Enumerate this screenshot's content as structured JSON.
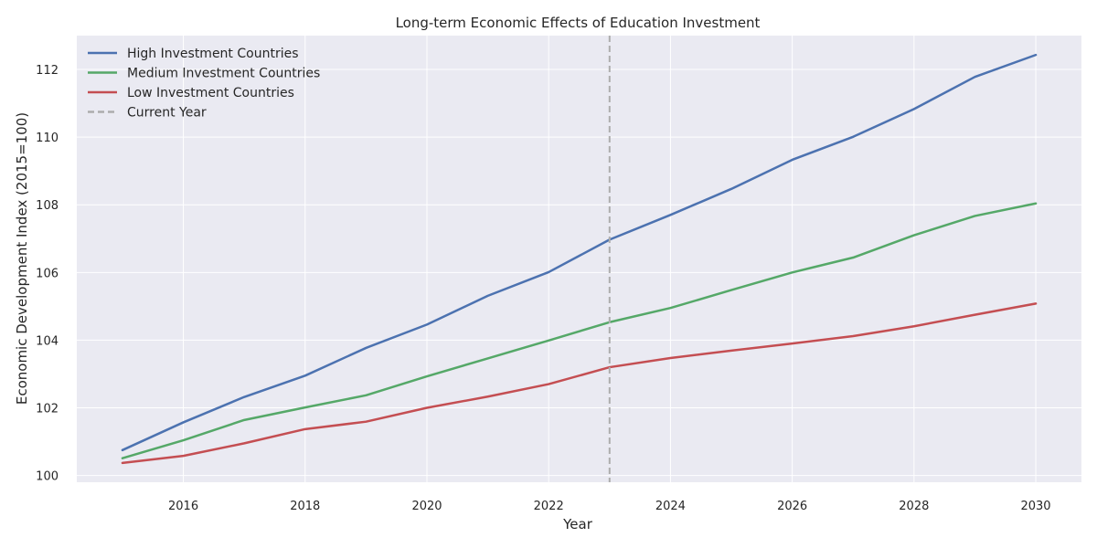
{
  "chart_data": {
    "type": "line",
    "title": "Long-term Economic Effects of Education Investment",
    "xlabel": "Year",
    "ylabel": "Economic Development Index (2015=100)",
    "xlim": [
      2014.25,
      2030.75
    ],
    "ylim": [
      99.8,
      113.0
    ],
    "x_ticks": [
      2016,
      2018,
      2020,
      2022,
      2024,
      2026,
      2028,
      2030
    ],
    "y_ticks": [
      100,
      102,
      104,
      106,
      108,
      110,
      112
    ],
    "grid": true,
    "legend_position": "top-left",
    "x": [
      2015,
      2016,
      2017,
      2018,
      2019,
      2020,
      2021,
      2022,
      2023,
      2024,
      2025,
      2026,
      2027,
      2028,
      2029,
      2030
    ],
    "series": [
      {
        "name": "High Investment Countries",
        "color": "#4c72b0",
        "values": [
          100.75,
          101.57,
          102.32,
          102.95,
          103.77,
          104.46,
          105.31,
          106.01,
          106.97,
          107.7,
          108.47,
          109.33,
          110.01,
          110.83,
          111.78,
          112.43
        ]
      },
      {
        "name": "Medium Investment Countries",
        "color": "#55a868",
        "values": [
          100.51,
          101.04,
          101.64,
          102.01,
          102.37,
          102.93,
          103.46,
          103.99,
          104.53,
          104.95,
          105.48,
          106.0,
          106.44,
          107.1,
          107.67,
          108.04
        ]
      },
      {
        "name": "Low Investment Countries",
        "color": "#c44e52",
        "values": [
          100.37,
          100.58,
          100.95,
          101.37,
          101.59,
          102.0,
          102.33,
          102.7,
          103.2,
          103.47,
          103.69,
          103.9,
          104.12,
          104.41,
          104.75,
          105.08
        ]
      }
    ],
    "reference_line": {
      "name": "Current Year",
      "x": 2023,
      "color": "#adadad",
      "style": "dashed"
    }
  }
}
